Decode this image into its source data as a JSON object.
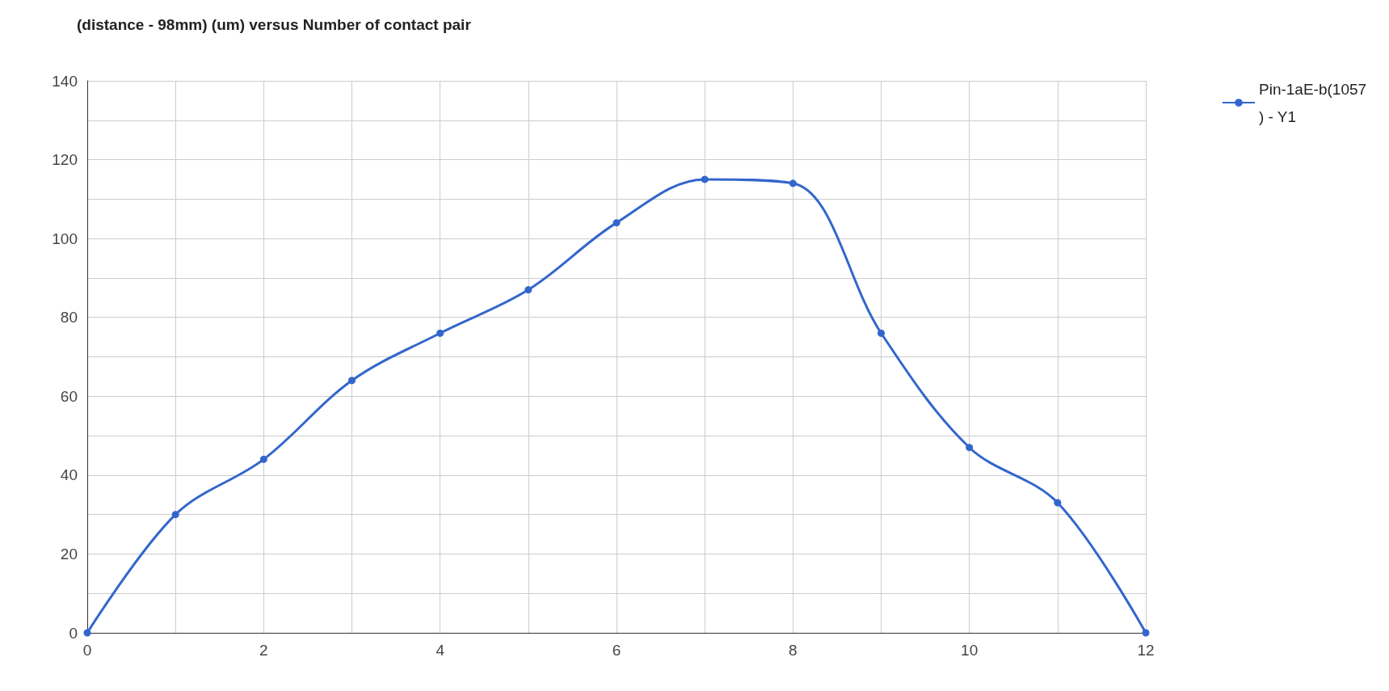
{
  "chart_data": {
    "type": "line",
    "title": "(distance - 98mm) (um) versus Number of contact pair",
    "x": [
      0,
      1,
      2,
      3,
      4,
      5,
      6,
      7,
      8,
      9,
      10,
      11,
      12
    ],
    "series": [
      {
        "name": "Pin-1aE-b(1057) - Y1",
        "color": "#3366cc",
        "values": [
          0,
          30,
          44,
          64,
          76,
          87,
          104,
          115,
          114,
          76,
          47,
          33,
          0
        ]
      }
    ],
    "xlim": [
      0,
      12
    ],
    "xticks": [
      0,
      {
        "value": 1,
        "label": null
      },
      2,
      {
        "value": 3,
        "label": null
      },
      4,
      {
        "value": 5,
        "label": null
      },
      6,
      {
        "value": 7,
        "label": null
      },
      8,
      {
        "value": 9,
        "label": null
      },
      10,
      {
        "value": 11,
        "label": null
      },
      12
    ],
    "ylim": [
      0,
      140
    ],
    "yticks": [
      0,
      {
        "value": 10,
        "label": null
      },
      20,
      {
        "value": 30,
        "label": null
      },
      40,
      {
        "value": 50,
        "label": null
      },
      60,
      {
        "value": 70,
        "label": null
      },
      80,
      {
        "value": 90,
        "label": null
      },
      100,
      {
        "value": 110,
        "label": null
      },
      120,
      {
        "value": 130,
        "label": null
      },
      140
    ],
    "grid": true,
    "legend": "top right",
    "marker": "circle",
    "line_style": "solid"
  }
}
